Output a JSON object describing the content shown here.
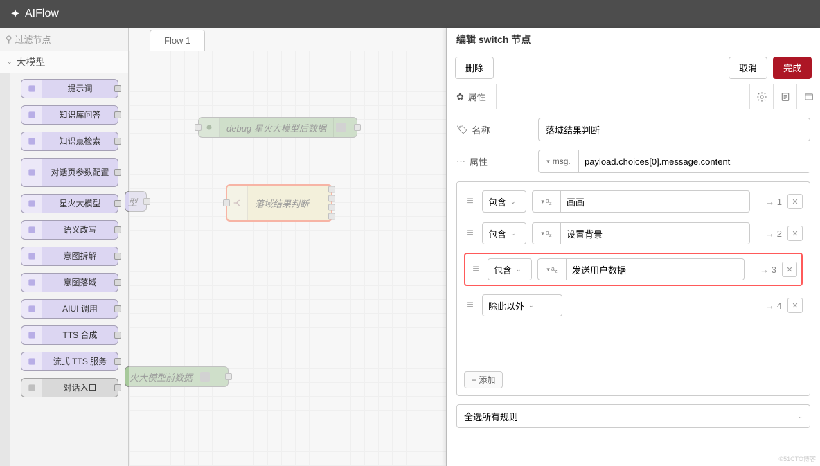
{
  "app": {
    "name": "AIFlow"
  },
  "sidebar": {
    "filter_placeholder": "过滤节点",
    "category_label": "大模型",
    "nodes": [
      {
        "label": "提示词",
        "color": "#dcd6f2",
        "icon_color": "#b8aee6"
      },
      {
        "label": "知识库问答",
        "color": "#dcd6f2",
        "icon_color": "#b8aee6"
      },
      {
        "label": "知识点检索",
        "color": "#dcd6f2",
        "icon_color": "#b8aee6"
      },
      {
        "label": "对话页参数配置",
        "color": "#dcd6f2",
        "icon_color": "#b8aee6",
        "tall": true
      },
      {
        "label": "星火大模型",
        "color": "#dcd6f2",
        "icon_color": "#b8aee6"
      },
      {
        "label": "语义改写",
        "color": "#dcd6f2",
        "icon_color": "#b8aee6"
      },
      {
        "label": "意图拆解",
        "color": "#dcd6f2",
        "icon_color": "#b8aee6"
      },
      {
        "label": "意图落域",
        "color": "#dcd6f2",
        "icon_color": "#b8aee6"
      },
      {
        "label": "AIUI 调用",
        "color": "#dcd6f2",
        "icon_color": "#b8aee6"
      },
      {
        "label": "TTS 合成",
        "color": "#dcd6f2",
        "icon_color": "#b8aee6"
      },
      {
        "label": "流式 TTS 服务",
        "color": "#dcd6f2",
        "icon_color": "#b8aee6"
      },
      {
        "label": "对话入口",
        "color": "#d9d9d9",
        "icon_color": "#bfbfbf"
      }
    ]
  },
  "workspace": {
    "tab_label": "Flow 1",
    "nodes": {
      "debug": {
        "label": "debug 星火大模型后数据"
      },
      "switch": {
        "label": "落域结果判断"
      },
      "purple": {
        "label": "型"
      },
      "green2": {
        "label": "火大模型前数据"
      }
    }
  },
  "tray": {
    "title": "编辑 switch 节点",
    "delete_label": "删除",
    "cancel_label": "取消",
    "done_label": "完成",
    "tab_properties": "属性",
    "name_label": "名称",
    "name_value": "落域结果判断",
    "property_label": "属性",
    "property_type": "msg.",
    "property_value": "payload.choices[0].message.content",
    "rules": [
      {
        "op": "包含",
        "type": "str",
        "value": "画画",
        "out": 1,
        "highlight": false
      },
      {
        "op": "包含",
        "type": "str",
        "value": "设置背景",
        "out": 2,
        "highlight": false
      },
      {
        "op": "包含",
        "type": "str",
        "value": "发送用户数据",
        "out": 3,
        "highlight": true
      },
      {
        "op": "除此以外",
        "type": null,
        "value": "",
        "out": 4,
        "highlight": false,
        "otherwise": true
      }
    ],
    "add_label": "添加",
    "match_mode": "全选所有规则"
  },
  "watermark": "©51CTO博客"
}
